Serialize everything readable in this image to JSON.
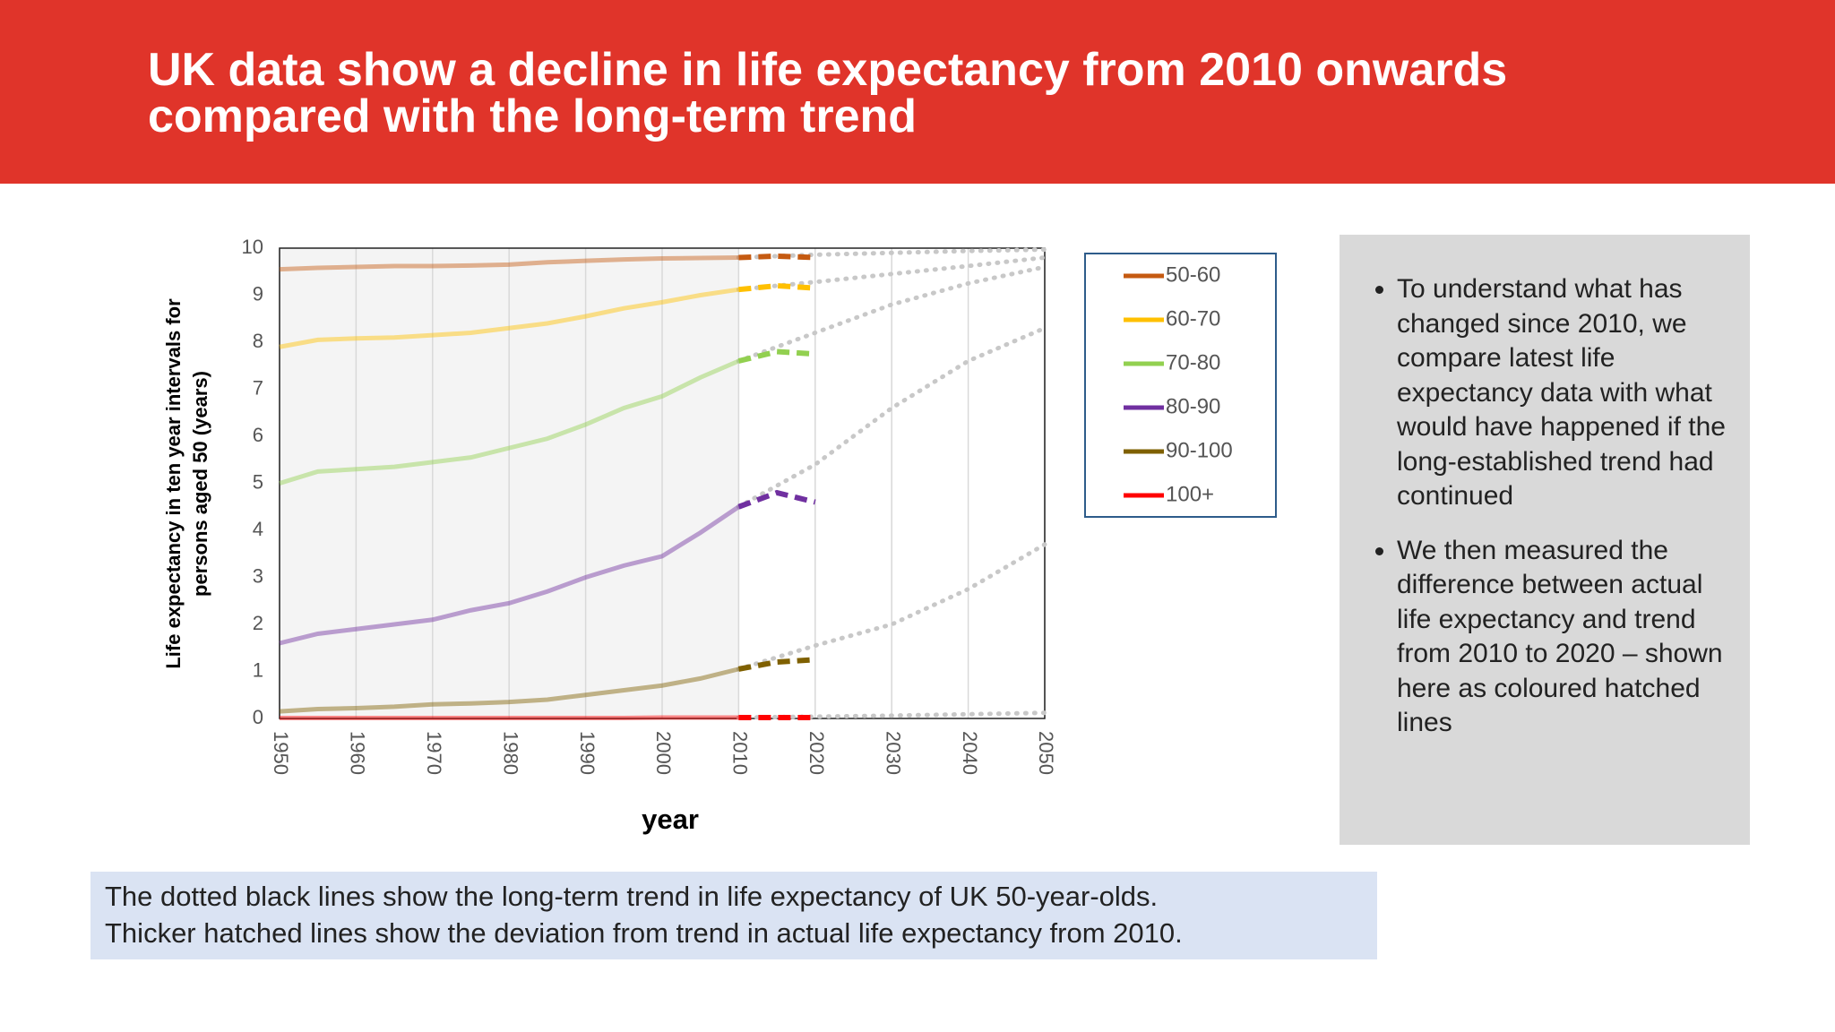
{
  "header": {
    "title": "UK data show a decline in life expectancy from 2010 onwards compared with the long-term trend"
  },
  "chart_data": {
    "type": "line",
    "y_label": "Life expectancy in ten year intervals for persons aged 50 (years)",
    "x_label": "year",
    "x": [
      1950,
      1955,
      1960,
      1965,
      1970,
      1975,
      1980,
      1985,
      1990,
      1995,
      2000,
      2005,
      2010,
      2015,
      2020,
      2030,
      2040,
      2050
    ],
    "series": [
      {
        "name": "50-60",
        "color": "#c55a11",
        "values": [
          9.55,
          9.58,
          9.6,
          9.62,
          9.62,
          9.63,
          9.65,
          9.7,
          9.73,
          9.76,
          9.78,
          9.79,
          9.8,
          9.83,
          9.8,
          null,
          null,
          null
        ],
        "trend": [
          null,
          null,
          null,
          null,
          null,
          null,
          null,
          null,
          null,
          null,
          null,
          null,
          9.8,
          9.83,
          9.86,
          9.9,
          9.94,
          9.97
        ]
      },
      {
        "name": "60-70",
        "color": "#ffc000",
        "values": [
          7.9,
          8.05,
          8.08,
          8.1,
          8.15,
          8.2,
          8.3,
          8.4,
          8.55,
          8.72,
          8.85,
          9.0,
          9.12,
          9.2,
          9.15,
          null,
          null,
          null
        ],
        "trend": [
          null,
          null,
          null,
          null,
          null,
          null,
          null,
          null,
          null,
          null,
          null,
          null,
          9.12,
          9.2,
          9.28,
          9.45,
          9.62,
          9.8
        ]
      },
      {
        "name": "70-80",
        "color": "#92d050",
        "values": [
          5.0,
          5.25,
          5.3,
          5.35,
          5.45,
          5.55,
          5.75,
          5.95,
          6.25,
          6.6,
          6.85,
          7.25,
          7.6,
          7.8,
          7.75,
          null,
          null,
          null
        ],
        "trend": [
          null,
          null,
          null,
          null,
          null,
          null,
          null,
          null,
          null,
          null,
          null,
          null,
          7.6,
          7.9,
          8.2,
          8.8,
          9.25,
          9.6
        ]
      },
      {
        "name": "80-90",
        "color": "#7030a0",
        "values": [
          1.6,
          1.8,
          1.9,
          2.0,
          2.1,
          2.3,
          2.45,
          2.7,
          3.0,
          3.25,
          3.45,
          3.95,
          4.5,
          4.8,
          4.6,
          null,
          null,
          null
        ],
        "trend": [
          null,
          null,
          null,
          null,
          null,
          null,
          null,
          null,
          null,
          null,
          null,
          null,
          4.5,
          4.95,
          5.4,
          6.6,
          7.6,
          8.3
        ]
      },
      {
        "name": "90-100",
        "color": "#7f6000",
        "values": [
          0.15,
          0.2,
          0.22,
          0.25,
          0.3,
          0.32,
          0.35,
          0.4,
          0.5,
          0.6,
          0.7,
          0.85,
          1.05,
          1.2,
          1.25,
          null,
          null,
          null
        ],
        "trend": [
          null,
          null,
          null,
          null,
          null,
          null,
          null,
          null,
          null,
          null,
          null,
          null,
          1.05,
          1.3,
          1.55,
          2.0,
          2.75,
          3.7
        ]
      },
      {
        "name": "100+",
        "color": "#ff0000",
        "values": [
          0.01,
          0.01,
          0.01,
          0.01,
          0.01,
          0.01,
          0.01,
          0.01,
          0.01,
          0.01,
          0.02,
          0.02,
          0.02,
          0.02,
          0.02,
          null,
          null,
          null
        ],
        "trend": [
          null,
          null,
          null,
          null,
          null,
          null,
          null,
          null,
          null,
          null,
          null,
          null,
          0.02,
          0.03,
          0.04,
          0.06,
          0.09,
          0.12
        ]
      }
    ],
    "trend_color": "#c8c8c8",
    "shaded_xlim": [
      1950,
      2010
    ],
    "xlim": [
      1950,
      2050
    ],
    "xticks": [
      1950,
      1960,
      1970,
      1980,
      1990,
      2000,
      2010,
      2020,
      2030,
      2040,
      2050
    ],
    "ylim": [
      0,
      10
    ],
    "yticks": [
      0,
      1,
      2,
      3,
      4,
      5,
      6,
      7,
      8,
      9,
      10
    ],
    "grid": true,
    "legend": "right"
  },
  "notes": {
    "bullets": [
      "To understand what has changed since 2010, we compare latest life expectancy data with what would have happened if the long-established trend had continued",
      "We then measured the difference between actual life expectancy and trend from 2010 to 2020 – shown here as coloured hatched lines"
    ]
  },
  "caption": {
    "lines": [
      "The dotted black lines show the long-term trend in life expectancy of UK 50-year-olds.",
      "Thicker hatched lines show the deviation from trend in actual life expectancy from 2010."
    ]
  }
}
